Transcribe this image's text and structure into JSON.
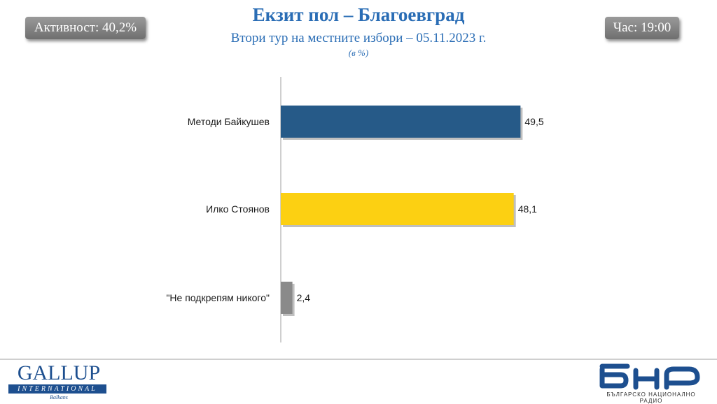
{
  "header": {
    "title": "Екзит пол – Благоевград",
    "subtitle": "Втори тур на местните избори – 05.11.2023 г.",
    "unit": "(в %)",
    "turnout": "Активност: 40,2%",
    "time": "Час: 19:00"
  },
  "chart_data": {
    "type": "bar",
    "orientation": "horizontal",
    "title": "Екзит пол – Благоевград",
    "subtitle": "Втори тур на местните избори – 05.11.2023 г.",
    "unit": "(в %)",
    "categories": [
      "Методи Байкушев",
      "Илко Стоянов",
      "\"Не подкрепям никого\""
    ],
    "values": [
      49.5,
      48.1,
      2.4
    ],
    "value_labels": [
      "49,5",
      "48,1",
      "2,4"
    ],
    "colors": [
      "#265A88",
      "#FCD012",
      "#8A8A8A"
    ],
    "xlim": [
      0,
      60
    ],
    "grid": false,
    "legend": "none"
  },
  "footer": {
    "gallup_logo": {
      "name": "GALLUP",
      "band": "INTERNATIONAL",
      "sub": "Balkans"
    },
    "bnr_logo": {
      "mark": "бнр",
      "tagline": "БЪЛГАРСКО НАЦИОНАЛНО РАДИО",
      "color": "#1d4f8f"
    }
  }
}
